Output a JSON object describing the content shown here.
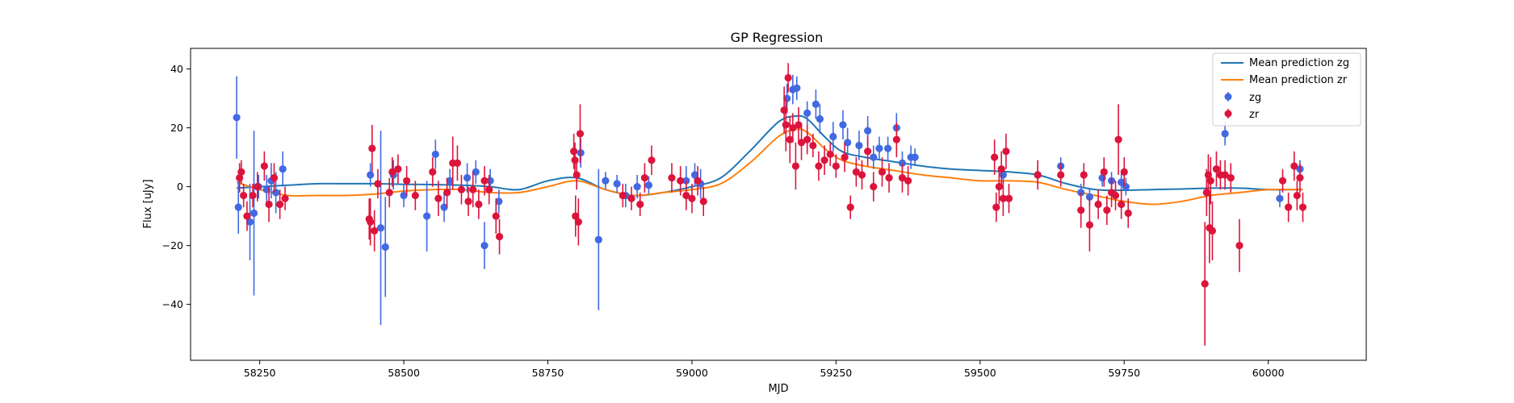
{
  "chart_data": {
    "type": "scatter",
    "title": "GP Regression",
    "xlabel": "MJD",
    "ylabel": "Flux [uJy]",
    "xlim": [
      58130,
      60170
    ],
    "ylim": [
      -59,
      47
    ],
    "x_ticks": [
      58250,
      58500,
      58750,
      59000,
      59250,
      59500,
      59750,
      60000
    ],
    "y_ticks": [
      -40,
      -20,
      0,
      20,
      40
    ],
    "grid": false,
    "legend_position": "top-right",
    "colors": {
      "mean_zg": "#1f77b4",
      "mean_zr": "#ff7f0e",
      "zg": "#4169e1",
      "zr": "#dc143c"
    },
    "series": [
      {
        "name": "Mean prediction zg",
        "kind": "line",
        "color": "#1f77b4",
        "x": [
          58210,
          58250,
          58300,
          58350,
          58400,
          58450,
          58500,
          58550,
          58600,
          58650,
          58700,
          58750,
          58800,
          58850,
          58900,
          58950,
          59000,
          59050,
          59100,
          59150,
          59180,
          59200,
          59230,
          59260,
          59300,
          59350,
          59400,
          59450,
          59500,
          59550,
          59600,
          59650,
          59700,
          59750,
          59800,
          59850,
          59900,
          59950,
          60000,
          60060
        ],
        "y": [
          -0.5,
          0,
          0.5,
          1,
          1,
          1,
          0.8,
          0.7,
          0.5,
          0,
          -1,
          2,
          3,
          -1,
          -3,
          -2,
          0,
          3,
          12,
          22,
          24,
          23,
          17,
          12,
          10,
          8.5,
          7,
          6,
          5.5,
          5,
          4,
          1,
          -1,
          -1.2,
          -1,
          -0.8,
          -0.5,
          -0.5,
          -1,
          -1
        ]
      },
      {
        "name": "Mean prediction zr",
        "kind": "line",
        "color": "#ff7f0e",
        "x": [
          58210,
          58250,
          58300,
          58350,
          58400,
          58450,
          58500,
          58550,
          58600,
          58650,
          58700,
          58750,
          58800,
          58850,
          58900,
          58950,
          59000,
          59050,
          59100,
          59150,
          59180,
          59200,
          59230,
          59260,
          59300,
          59350,
          59400,
          59450,
          59500,
          59550,
          59600,
          59650,
          59700,
          59750,
          59800,
          59850,
          59900,
          59950,
          60000,
          60060
        ],
        "y": [
          1.5,
          -1,
          -3,
          -3,
          -3,
          -2.5,
          -1.5,
          -1,
          -1,
          -2,
          -2,
          0,
          2,
          -1,
          -3,
          -2,
          -1,
          1,
          8,
          17,
          19.5,
          18.5,
          13,
          9,
          7,
          5.5,
          4,
          3,
          2,
          2,
          1.5,
          -1,
          -3,
          -5,
          -6,
          -5,
          -3,
          -2,
          -1,
          -1
        ]
      },
      {
        "name": "zg",
        "kind": "errorbar",
        "color": "#4169e1",
        "points": [
          {
            "x": 58210,
            "y": 23.5,
            "err": 14
          },
          {
            "x": 58213,
            "y": -7,
            "err": 9
          },
          {
            "x": 58233,
            "y": -12,
            "err": 13
          },
          {
            "x": 58240,
            "y": -9,
            "err": 28
          },
          {
            "x": 58248,
            "y": 0,
            "err": 4
          },
          {
            "x": 58262,
            "y": -1,
            "err": 5
          },
          {
            "x": 58270,
            "y": 2,
            "err": 6
          },
          {
            "x": 58278,
            "y": -2,
            "err": 7
          },
          {
            "x": 58290,
            "y": 6,
            "err": 6
          },
          {
            "x": 58442,
            "y": 4,
            "err": 4
          },
          {
            "x": 58460,
            "y": -14,
            "err": 33
          },
          {
            "x": 58468,
            "y": -20.5,
            "err": 17
          },
          {
            "x": 58482,
            "y": 4,
            "err": 5
          },
          {
            "x": 58500,
            "y": -3,
            "err": 4
          },
          {
            "x": 58540,
            "y": -10,
            "err": 12
          },
          {
            "x": 58555,
            "y": 11,
            "err": 5
          },
          {
            "x": 58570,
            "y": -7,
            "err": 5
          },
          {
            "x": 58580,
            "y": 2,
            "err": 4
          },
          {
            "x": 58610,
            "y": 3,
            "err": 5
          },
          {
            "x": 58625,
            "y": 5,
            "err": 4
          },
          {
            "x": 58640,
            "y": -20,
            "err": 8
          },
          {
            "x": 58650,
            "y": 2,
            "err": 4
          },
          {
            "x": 58665,
            "y": -5,
            "err": 4
          },
          {
            "x": 58807,
            "y": 11.5,
            "err": 5
          },
          {
            "x": 58838,
            "y": -18,
            "err": 24
          },
          {
            "x": 58850,
            "y": 2,
            "err": 3
          },
          {
            "x": 58870,
            "y": 1,
            "err": 3
          },
          {
            "x": 58885,
            "y": -3,
            "err": 4
          },
          {
            "x": 58905,
            "y": 0,
            "err": 4
          },
          {
            "x": 58925,
            "y": 0.5,
            "err": 3
          },
          {
            "x": 58990,
            "y": 2,
            "err": 5
          },
          {
            "x": 59005,
            "y": 4,
            "err": 4
          },
          {
            "x": 59015,
            "y": 1,
            "err": 5
          },
          {
            "x": 59165,
            "y": 30,
            "err": 5
          },
          {
            "x": 59175,
            "y": 33,
            "err": 5
          },
          {
            "x": 59182,
            "y": 33.5,
            "err": 4
          },
          {
            "x": 59200,
            "y": 25,
            "err": 4
          },
          {
            "x": 59215,
            "y": 28,
            "err": 5
          },
          {
            "x": 59222,
            "y": 23,
            "err": 5
          },
          {
            "x": 59245,
            "y": 17,
            "err": 5
          },
          {
            "x": 59262,
            "y": 21,
            "err": 5
          },
          {
            "x": 59270,
            "y": 15,
            "err": 5
          },
          {
            "x": 59290,
            "y": 14,
            "err": 5
          },
          {
            "x": 59305,
            "y": 19,
            "err": 5
          },
          {
            "x": 59315,
            "y": 10,
            "err": 4
          },
          {
            "x": 59325,
            "y": 13,
            "err": 4
          },
          {
            "x": 59340,
            "y": 13,
            "err": 4
          },
          {
            "x": 59355,
            "y": 20,
            "err": 5
          },
          {
            "x": 59365,
            "y": 8,
            "err": 4
          },
          {
            "x": 59380,
            "y": 10,
            "err": 4
          },
          {
            "x": 59387,
            "y": 10,
            "err": 3
          },
          {
            "x": 59540,
            "y": 4,
            "err": 3
          },
          {
            "x": 59600,
            "y": 4,
            "err": 3
          },
          {
            "x": 59640,
            "y": 7,
            "err": 3
          },
          {
            "x": 59675,
            "y": -2,
            "err": 3
          },
          {
            "x": 59690,
            "y": -3.5,
            "err": 3
          },
          {
            "x": 59712,
            "y": 3,
            "err": 3
          },
          {
            "x": 59728,
            "y": 2,
            "err": 3
          },
          {
            "x": 59745,
            "y": 1.5,
            "err": 3
          },
          {
            "x": 59753,
            "y": 0,
            "err": 3
          },
          {
            "x": 59925,
            "y": 18,
            "err": 4
          },
          {
            "x": 60020,
            "y": -4,
            "err": 3
          },
          {
            "x": 60055,
            "y": 6,
            "err": 3
          }
        ]
      },
      {
        "name": "zr",
        "kind": "errorbar",
        "color": "#dc143c",
        "points": [
          {
            "x": 58215,
            "y": 3,
            "err": 5
          },
          {
            "x": 58218,
            "y": 5,
            "err": 4
          },
          {
            "x": 58222,
            "y": -3,
            "err": 4
          },
          {
            "x": 58228,
            "y": -10,
            "err": 5
          },
          {
            "x": 58238,
            "y": -3,
            "err": 4
          },
          {
            "x": 58246,
            "y": 0,
            "err": 5
          },
          {
            "x": 58258,
            "y": 7,
            "err": 5
          },
          {
            "x": 58266,
            "y": -6,
            "err": 6
          },
          {
            "x": 58275,
            "y": 3,
            "err": 5
          },
          {
            "x": 58285,
            "y": -6,
            "err": 5
          },
          {
            "x": 58294,
            "y": -4,
            "err": 4
          },
          {
            "x": 58440,
            "y": -11,
            "err": 7
          },
          {
            "x": 58442,
            "y": -12,
            "err": 8
          },
          {
            "x": 58445,
            "y": 13,
            "err": 8
          },
          {
            "x": 58449,
            "y": -15,
            "err": 7
          },
          {
            "x": 58455,
            "y": 1,
            "err": 5
          },
          {
            "x": 58475,
            "y": -2,
            "err": 5
          },
          {
            "x": 58480,
            "y": 5,
            "err": 5
          },
          {
            "x": 58490,
            "y": 6,
            "err": 5
          },
          {
            "x": 58505,
            "y": 2,
            "err": 5
          },
          {
            "x": 58520,
            "y": -3,
            "err": 5
          },
          {
            "x": 58550,
            "y": 5,
            "err": 5
          },
          {
            "x": 58560,
            "y": -4,
            "err": 6
          },
          {
            "x": 58575,
            "y": -2,
            "err": 5
          },
          {
            "x": 58585,
            "y": 8,
            "err": 9
          },
          {
            "x": 58593,
            "y": 8,
            "err": 6
          },
          {
            "x": 58600,
            "y": -1,
            "err": 5
          },
          {
            "x": 58612,
            "y": -5,
            "err": 5
          },
          {
            "x": 58620,
            "y": -1,
            "err": 6
          },
          {
            "x": 58630,
            "y": -6,
            "err": 5
          },
          {
            "x": 58640,
            "y": 2,
            "err": 5
          },
          {
            "x": 58648,
            "y": -1,
            "err": 5
          },
          {
            "x": 58660,
            "y": -10,
            "err": 6
          },
          {
            "x": 58666,
            "y": -17,
            "err": 6
          },
          {
            "x": 58795,
            "y": 12,
            "err": 6
          },
          {
            "x": 58797,
            "y": 9,
            "err": 6
          },
          {
            "x": 58798,
            "y": -10,
            "err": 7
          },
          {
            "x": 58800,
            "y": 4,
            "err": 5
          },
          {
            "x": 58803,
            "y": -12,
            "err": 8
          },
          {
            "x": 58806,
            "y": 18,
            "err": 10
          },
          {
            "x": 58880,
            "y": -3,
            "err": 4
          },
          {
            "x": 58895,
            "y": -4,
            "err": 4
          },
          {
            "x": 58910,
            "y": -6,
            "err": 4
          },
          {
            "x": 58918,
            "y": 3,
            "err": 5
          },
          {
            "x": 58930,
            "y": 9,
            "err": 5
          },
          {
            "x": 58965,
            "y": 3,
            "err": 5
          },
          {
            "x": 58980,
            "y": 2,
            "err": 5
          },
          {
            "x": 58990,
            "y": -3,
            "err": 5
          },
          {
            "x": 59000,
            "y": -4,
            "err": 5
          },
          {
            "x": 59010,
            "y": 2,
            "err": 5
          },
          {
            "x": 59020,
            "y": -5,
            "err": 5
          },
          {
            "x": 59160,
            "y": 26,
            "err": 8
          },
          {
            "x": 59163,
            "y": 21,
            "err": 9
          },
          {
            "x": 59167,
            "y": 37,
            "err": 5
          },
          {
            "x": 59170,
            "y": 16,
            "err": 8
          },
          {
            "x": 59175,
            "y": 20,
            "err": 5
          },
          {
            "x": 59180,
            "y": 7,
            "err": 8
          },
          {
            "x": 59185,
            "y": 21,
            "err": 6
          },
          {
            "x": 59190,
            "y": 15,
            "err": 6
          },
          {
            "x": 59200,
            "y": 16,
            "err": 5
          },
          {
            "x": 59210,
            "y": 14,
            "err": 4
          },
          {
            "x": 59220,
            "y": 7,
            "err": 5
          },
          {
            "x": 59230,
            "y": 9,
            "err": 5
          },
          {
            "x": 59240,
            "y": 11,
            "err": 4
          },
          {
            "x": 59250,
            "y": 7,
            "err": 4
          },
          {
            "x": 59265,
            "y": 10,
            "err": 5
          },
          {
            "x": 59275,
            "y": -7,
            "err": 4
          },
          {
            "x": 59285,
            "y": 5,
            "err": 5
          },
          {
            "x": 59295,
            "y": 4,
            "err": 5
          },
          {
            "x": 59305,
            "y": 12,
            "err": 5
          },
          {
            "x": 59315,
            "y": 0,
            "err": 5
          },
          {
            "x": 59330,
            "y": 5,
            "err": 5
          },
          {
            "x": 59342,
            "y": 3,
            "err": 5
          },
          {
            "x": 59355,
            "y": 16,
            "err": 6
          },
          {
            "x": 59365,
            "y": 3,
            "err": 5
          },
          {
            "x": 59375,
            "y": 2,
            "err": 5
          },
          {
            "x": 59525,
            "y": 10,
            "err": 6
          },
          {
            "x": 59528,
            "y": -7,
            "err": 5
          },
          {
            "x": 59533,
            "y": 0,
            "err": 6
          },
          {
            "x": 59537,
            "y": 6,
            "err": 6
          },
          {
            "x": 59540,
            "y": -4,
            "err": 6
          },
          {
            "x": 59545,
            "y": 12,
            "err": 6
          },
          {
            "x": 59550,
            "y": -4,
            "err": 5
          },
          {
            "x": 59600,
            "y": 4,
            "err": 5
          },
          {
            "x": 59640,
            "y": 4,
            "err": 4
          },
          {
            "x": 59675,
            "y": -8,
            "err": 6
          },
          {
            "x": 59680,
            "y": 4,
            "err": 4
          },
          {
            "x": 59690,
            "y": -13,
            "err": 9
          },
          {
            "x": 59705,
            "y": -6,
            "err": 5
          },
          {
            "x": 59715,
            "y": 5,
            "err": 5
          },
          {
            "x": 59720,
            "y": -8,
            "err": 5
          },
          {
            "x": 59728,
            "y": -2,
            "err": 5
          },
          {
            "x": 59735,
            "y": -3,
            "err": 5
          },
          {
            "x": 59740,
            "y": 16,
            "err": 12
          },
          {
            "x": 59745,
            "y": -6,
            "err": 5
          },
          {
            "x": 59750,
            "y": 5,
            "err": 5
          },
          {
            "x": 59757,
            "y": -9,
            "err": 5
          },
          {
            "x": 59890,
            "y": -33,
            "err": 21
          },
          {
            "x": 59893,
            "y": -2,
            "err": 8
          },
          {
            "x": 59896,
            "y": 4,
            "err": 7
          },
          {
            "x": 59898,
            "y": -14,
            "err": 12
          },
          {
            "x": 59900,
            "y": 2,
            "err": 8
          },
          {
            "x": 59903,
            "y": -15,
            "err": 10
          },
          {
            "x": 59910,
            "y": 6,
            "err": 6
          },
          {
            "x": 59917,
            "y": 4,
            "err": 5
          },
          {
            "x": 59925,
            "y": 4,
            "err": 5
          },
          {
            "x": 59935,
            "y": 3,
            "err": 5
          },
          {
            "x": 59950,
            "y": -20,
            "err": 9
          },
          {
            "x": 60025,
            "y": 2,
            "err": 4
          },
          {
            "x": 60035,
            "y": -7,
            "err": 5
          },
          {
            "x": 60045,
            "y": 7,
            "err": 5
          },
          {
            "x": 60050,
            "y": -3,
            "err": 5
          },
          {
            "x": 60055,
            "y": 3,
            "err": 5
          },
          {
            "x": 60060,
            "y": -7,
            "err": 5
          }
        ]
      }
    ]
  }
}
